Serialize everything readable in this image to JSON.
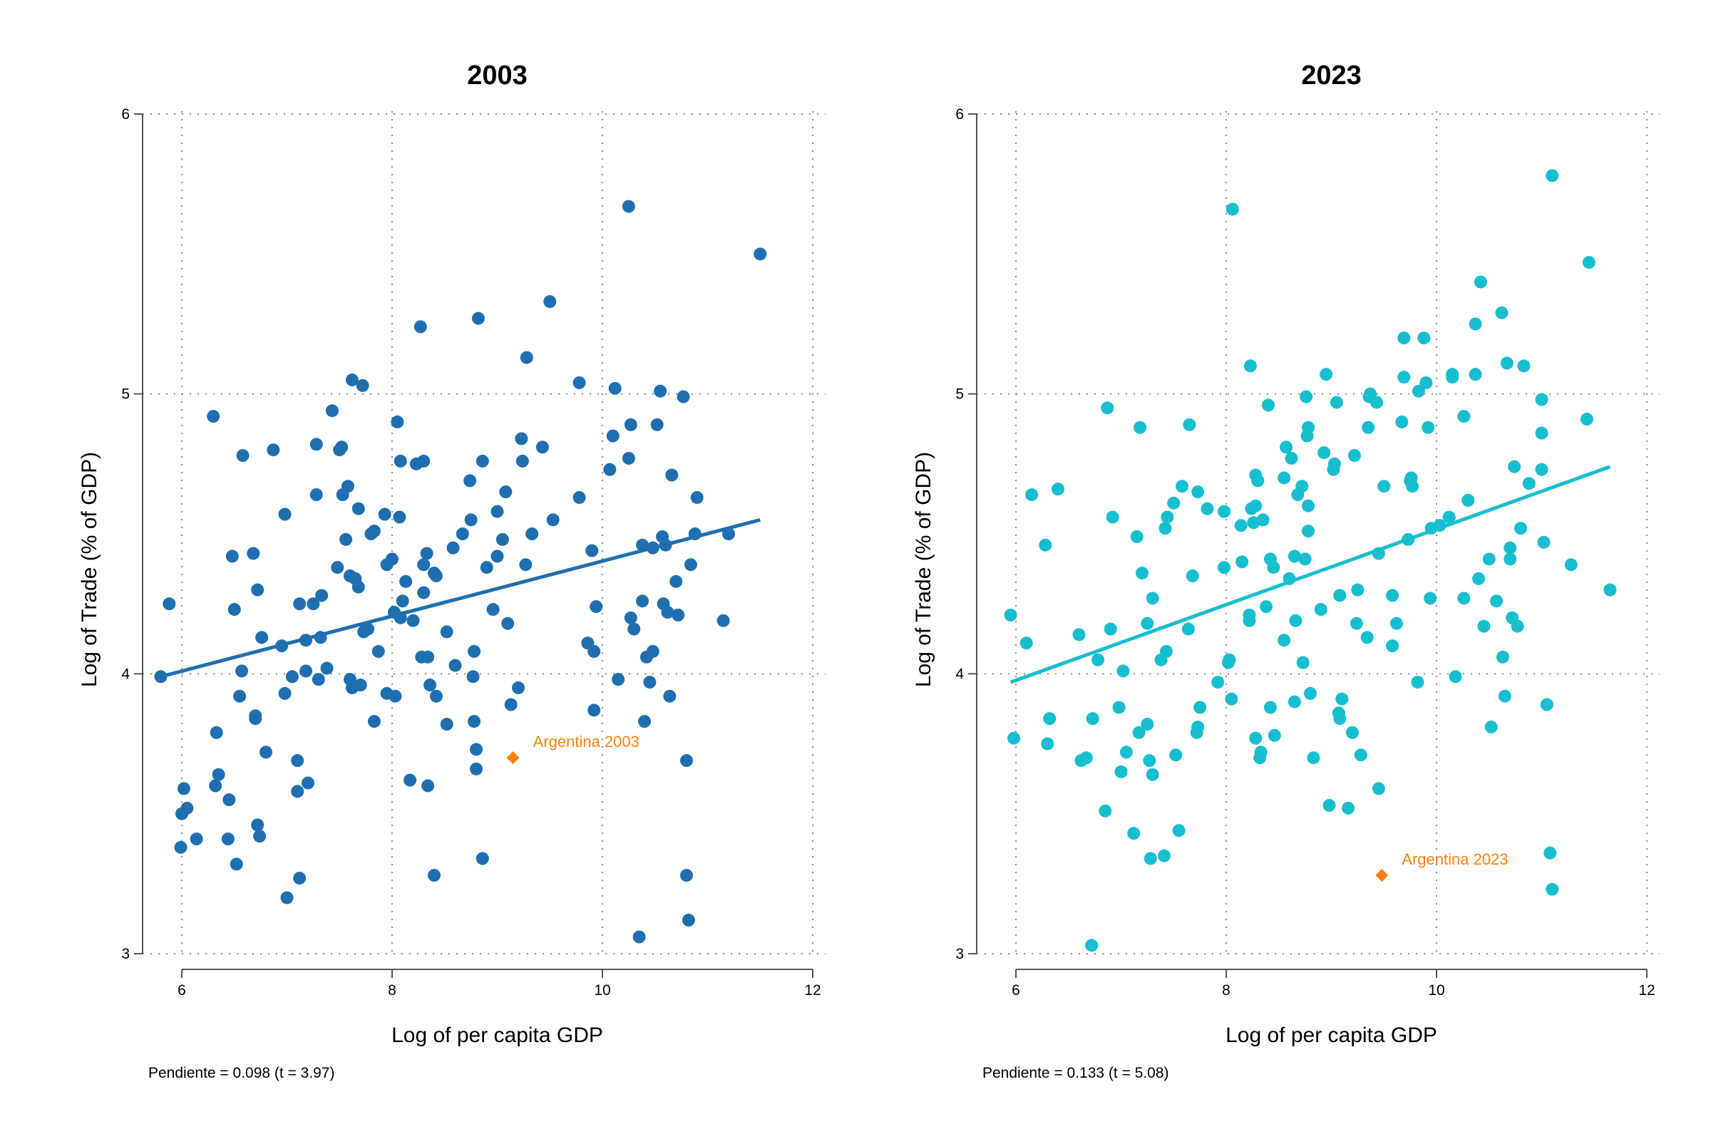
{
  "chart_data": [
    {
      "type": "scatter",
      "title": "2003",
      "xlabel": "Log of per capita GDP",
      "ylabel": "Log of Trade (% of GDP)",
      "xlim": [
        5.7,
        12.2
      ],
      "ylim": [
        2.92,
        6.05
      ],
      "xticks": [
        6,
        8,
        10,
        12
      ],
      "yticks": [
        3,
        4,
        5,
        6
      ],
      "grid": "dotted",
      "color": "#1f6fb0",
      "fit_line": {
        "x0": 5.8,
        "y0": 3.99,
        "x1": 11.5,
        "y1": 4.55
      },
      "highlight": {
        "x": 9.15,
        "y": 3.7,
        "label": "Argentina 2003",
        "color": "#ff7f0e"
      },
      "note": "Pendiente = 0.098   (t =  3.97)",
      "points": [
        [
          5.8,
          3.99
        ],
        [
          5.88,
          4.25
        ],
        [
          6.0,
          3.5
        ],
        [
          6.02,
          3.59
        ],
        [
          6.05,
          3.52
        ],
        [
          5.99,
          3.38
        ],
        [
          6.14,
          3.41
        ],
        [
          6.3,
          4.92
        ],
        [
          6.33,
          3.79
        ],
        [
          6.35,
          3.64
        ],
        [
          6.32,
          3.6
        ],
        [
          6.44,
          3.41
        ],
        [
          6.45,
          3.55
        ],
        [
          6.48,
          4.42
        ],
        [
          6.5,
          4.23
        ],
        [
          6.52,
          3.32
        ],
        [
          6.55,
          3.92
        ],
        [
          6.58,
          4.78
        ],
        [
          6.57,
          4.01
        ],
        [
          6.68,
          4.43
        ],
        [
          6.7,
          3.84
        ],
        [
          6.7,
          3.85
        ],
        [
          6.72,
          4.3
        ],
        [
          6.72,
          3.46
        ],
        [
          6.74,
          3.42
        ],
        [
          6.76,
          4.13
        ],
        [
          6.8,
          3.72
        ],
        [
          6.87,
          4.8
        ],
        [
          6.95,
          4.1
        ],
        [
          6.98,
          3.93
        ],
        [
          6.98,
          4.57
        ],
        [
          7.0,
          3.2
        ],
        [
          7.05,
          3.99
        ],
        [
          7.1,
          3.69
        ],
        [
          7.1,
          3.58
        ],
        [
          7.12,
          4.25
        ],
        [
          7.12,
          3.27
        ],
        [
          7.18,
          4.01
        ],
        [
          7.18,
          4.12
        ],
        [
          7.2,
          3.61
        ],
        [
          7.25,
          4.25
        ],
        [
          7.28,
          4.82
        ],
        [
          7.28,
          4.64
        ],
        [
          7.3,
          3.98
        ],
        [
          7.32,
          4.13
        ],
        [
          7.33,
          4.28
        ],
        [
          7.38,
          4.02
        ],
        [
          7.43,
          4.94
        ],
        [
          7.48,
          4.38
        ],
        [
          7.5,
          4.8
        ],
        [
          7.52,
          4.81
        ],
        [
          7.53,
          4.64
        ],
        [
          7.56,
          4.48
        ],
        [
          7.58,
          4.67
        ],
        [
          7.6,
          4.35
        ],
        [
          7.6,
          3.98
        ],
        [
          7.62,
          5.05
        ],
        [
          7.62,
          3.95
        ],
        [
          7.65,
          4.34
        ],
        [
          7.68,
          4.31
        ],
        [
          7.68,
          4.59
        ],
        [
          7.7,
          3.96
        ],
        [
          7.72,
          5.03
        ],
        [
          7.73,
          4.15
        ],
        [
          7.77,
          4.16
        ],
        [
          7.8,
          4.5
        ],
        [
          7.83,
          4.51
        ],
        [
          7.83,
          3.83
        ],
        [
          7.87,
          4.08
        ],
        [
          7.93,
          4.57
        ],
        [
          7.95,
          3.93
        ],
        [
          7.95,
          4.39
        ],
        [
          8.0,
          4.41
        ],
        [
          8.02,
          4.22
        ],
        [
          8.03,
          3.92
        ],
        [
          8.05,
          4.9
        ],
        [
          8.07,
          4.56
        ],
        [
          8.08,
          4.76
        ],
        [
          8.08,
          4.2
        ],
        [
          8.1,
          4.26
        ],
        [
          8.13,
          4.33
        ],
        [
          8.17,
          3.62
        ],
        [
          8.2,
          4.19
        ],
        [
          8.23,
          4.75
        ],
        [
          8.27,
          5.24
        ],
        [
          8.28,
          4.06
        ],
        [
          8.3,
          4.76
        ],
        [
          8.3,
          4.39
        ],
        [
          8.3,
          4.29
        ],
        [
          8.33,
          4.43
        ],
        [
          8.34,
          3.6
        ],
        [
          8.34,
          4.06
        ],
        [
          8.36,
          3.96
        ],
        [
          8.4,
          4.36
        ],
        [
          8.4,
          3.28
        ],
        [
          8.42,
          4.35
        ],
        [
          8.42,
          3.92
        ],
        [
          8.52,
          3.82
        ],
        [
          8.52,
          4.15
        ],
        [
          8.58,
          4.45
        ],
        [
          8.6,
          4.03
        ],
        [
          8.67,
          4.5
        ],
        [
          8.74,
          4.69
        ],
        [
          8.75,
          4.55
        ],
        [
          8.77,
          3.99
        ],
        [
          8.78,
          4.08
        ],
        [
          8.78,
          3.83
        ],
        [
          8.8,
          3.73
        ],
        [
          8.8,
          3.66
        ],
        [
          8.82,
          5.27
        ],
        [
          8.86,
          4.76
        ],
        [
          8.86,
          3.34
        ],
        [
          8.9,
          4.38
        ],
        [
          8.96,
          4.23
        ],
        [
          9.0,
          4.58
        ],
        [
          9.0,
          4.42
        ],
        [
          9.05,
          4.48
        ],
        [
          9.08,
          4.65
        ],
        [
          9.1,
          4.18
        ],
        [
          9.13,
          3.89
        ],
        [
          9.2,
          3.95
        ],
        [
          9.23,
          4.84
        ],
        [
          9.24,
          4.76
        ],
        [
          9.27,
          4.39
        ],
        [
          9.28,
          5.13
        ],
        [
          9.33,
          4.5
        ],
        [
          9.43,
          4.81
        ],
        [
          9.5,
          5.33
        ],
        [
          9.53,
          4.55
        ],
        [
          9.78,
          5.04
        ],
        [
          9.78,
          4.63
        ],
        [
          9.86,
          4.11
        ],
        [
          9.9,
          4.44
        ],
        [
          9.92,
          4.08
        ],
        [
          9.94,
          4.24
        ],
        [
          9.92,
          3.87
        ],
        [
          10.07,
          4.73
        ],
        [
          10.1,
          4.85
        ],
        [
          10.12,
          5.02
        ],
        [
          10.15,
          3.98
        ],
        [
          10.25,
          5.67
        ],
        [
          10.27,
          4.2
        ],
        [
          10.27,
          4.89
        ],
        [
          10.25,
          4.77
        ],
        [
          10.3,
          4.16
        ],
        [
          10.35,
          3.06
        ],
        [
          10.38,
          4.46
        ],
        [
          10.38,
          4.26
        ],
        [
          10.4,
          3.83
        ],
        [
          10.42,
          4.06
        ],
        [
          10.45,
          3.97
        ],
        [
          10.48,
          4.08
        ],
        [
          10.48,
          4.45
        ],
        [
          10.52,
          4.89
        ],
        [
          10.55,
          5.01
        ],
        [
          10.57,
          4.49
        ],
        [
          10.58,
          4.25
        ],
        [
          10.6,
          4.46
        ],
        [
          10.62,
          4.22
        ],
        [
          10.64,
          3.92
        ],
        [
          10.66,
          4.71
        ],
        [
          10.7,
          4.33
        ],
        [
          10.72,
          4.21
        ],
        [
          10.77,
          4.99
        ],
        [
          10.8,
          3.69
        ],
        [
          10.8,
          3.28
        ],
        [
          10.82,
          3.12
        ],
        [
          10.84,
          4.39
        ],
        [
          10.88,
          4.5
        ],
        [
          10.9,
          4.63
        ],
        [
          11.15,
          4.19
        ],
        [
          11.2,
          4.5
        ],
        [
          11.5,
          5.5
        ]
      ]
    },
    {
      "type": "scatter",
      "title": "2023",
      "xlabel": "Log of per capita GDP",
      "ylabel": "Log of Trade (% of GDP)",
      "xlim": [
        5.7,
        12.2
      ],
      "ylim": [
        2.92,
        6.05
      ],
      "xticks": [
        6,
        8,
        10,
        12
      ],
      "yticks": [
        3,
        4,
        5,
        6
      ],
      "grid": "dotted",
      "color": "#17becf",
      "fit_line": {
        "x0": 5.95,
        "y0": 3.97,
        "x1": 11.65,
        "y1": 4.74
      },
      "highlight": {
        "x": 9.48,
        "y": 3.28,
        "label": "Argentina 2023",
        "color": "#ff7f0e"
      },
      "note": "Pendiente = 0.133   (t =  5.08)",
      "points": [
        [
          5.95,
          4.21
        ],
        [
          5.98,
          3.77
        ],
        [
          6.1,
          4.11
        ],
        [
          6.15,
          4.64
        ],
        [
          6.28,
          4.46
        ],
        [
          6.3,
          3.75
        ],
        [
          6.32,
          3.84
        ],
        [
          6.4,
          4.66
        ],
        [
          6.6,
          4.14
        ],
        [
          6.62,
          3.69
        ],
        [
          6.67,
          3.7
        ],
        [
          6.72,
          3.03
        ],
        [
          6.73,
          3.84
        ],
        [
          6.78,
          4.05
        ],
        [
          6.85,
          3.51
        ],
        [
          6.87,
          4.95
        ],
        [
          6.9,
          4.16
        ],
        [
          6.92,
          4.56
        ],
        [
          6.98,
          3.88
        ],
        [
          7.0,
          3.65
        ],
        [
          7.02,
          4.01
        ],
        [
          7.05,
          3.72
        ],
        [
          7.12,
          3.43
        ],
        [
          7.15,
          4.49
        ],
        [
          7.17,
          3.79
        ],
        [
          7.18,
          4.88
        ],
        [
          7.2,
          4.36
        ],
        [
          7.25,
          3.82
        ],
        [
          7.25,
          4.18
        ],
        [
          7.27,
          3.69
        ],
        [
          7.28,
          3.34
        ],
        [
          7.3,
          3.64
        ],
        [
          7.3,
          4.27
        ],
        [
          7.38,
          4.05
        ],
        [
          7.41,
          3.35
        ],
        [
          7.42,
          4.52
        ],
        [
          7.43,
          4.08
        ],
        [
          7.44,
          4.56
        ],
        [
          7.5,
          4.61
        ],
        [
          7.52,
          3.71
        ],
        [
          7.55,
          3.44
        ],
        [
          7.58,
          4.67
        ],
        [
          7.64,
          4.16
        ],
        [
          7.65,
          4.89
        ],
        [
          7.68,
          4.35
        ],
        [
          7.72,
          3.79
        ],
        [
          7.73,
          3.81
        ],
        [
          7.75,
          3.88
        ],
        [
          7.73,
          4.65
        ],
        [
          7.82,
          4.59
        ],
        [
          7.92,
          3.97
        ],
        [
          7.98,
          4.58
        ],
        [
          7.98,
          4.38
        ],
        [
          8.02,
          4.04
        ],
        [
          8.03,
          4.05
        ],
        [
          8.05,
          3.91
        ],
        [
          8.06,
          5.66
        ],
        [
          8.14,
          4.53
        ],
        [
          8.15,
          4.4
        ],
        [
          8.22,
          4.19
        ],
        [
          8.22,
          4.21
        ],
        [
          8.23,
          5.1
        ],
        [
          8.24,
          4.59
        ],
        [
          8.26,
          4.54
        ],
        [
          8.28,
          4.6
        ],
        [
          8.28,
          4.71
        ],
        [
          8.3,
          4.69
        ],
        [
          8.28,
          3.77
        ],
        [
          8.32,
          3.7
        ],
        [
          8.35,
          4.55
        ],
        [
          8.33,
          3.72
        ],
        [
          8.38,
          4.24
        ],
        [
          8.4,
          4.96
        ],
        [
          8.42,
          3.88
        ],
        [
          8.42,
          4.41
        ],
        [
          8.45,
          4.38
        ],
        [
          8.46,
          3.78
        ],
        [
          8.55,
          4.12
        ],
        [
          8.55,
          4.7
        ],
        [
          8.57,
          4.81
        ],
        [
          8.6,
          4.34
        ],
        [
          8.62,
          4.77
        ],
        [
          8.65,
          3.9
        ],
        [
          8.65,
          4.42
        ],
        [
          8.66,
          4.19
        ],
        [
          8.68,
          4.64
        ],
        [
          8.72,
          4.67
        ],
        [
          8.73,
          4.04
        ],
        [
          8.75,
          4.41
        ],
        [
          8.76,
          4.99
        ],
        [
          8.77,
          4.85
        ],
        [
          8.78,
          4.88
        ],
        [
          8.78,
          4.6
        ],
        [
          8.78,
          4.51
        ],
        [
          8.8,
          3.93
        ],
        [
          8.83,
          3.7
        ],
        [
          8.9,
          4.23
        ],
        [
          8.93,
          4.79
        ],
        [
          8.95,
          5.07
        ],
        [
          8.98,
          3.53
        ],
        [
          9.02,
          4.73
        ],
        [
          9.03,
          4.75
        ],
        [
          9.05,
          4.97
        ],
        [
          9.07,
          3.86
        ],
        [
          9.08,
          3.84
        ],
        [
          9.08,
          4.28
        ],
        [
          9.1,
          3.91
        ],
        [
          9.16,
          3.52
        ],
        [
          9.2,
          3.79
        ],
        [
          9.22,
          4.78
        ],
        [
          9.24,
          4.18
        ],
        [
          9.25,
          4.3
        ],
        [
          9.28,
          3.71
        ],
        [
          9.34,
          4.13
        ],
        [
          9.35,
          4.88
        ],
        [
          9.37,
          5.0
        ],
        [
          9.36,
          4.99
        ],
        [
          9.43,
          4.97
        ],
        [
          9.45,
          4.43
        ],
        [
          9.45,
          3.59
        ],
        [
          9.5,
          4.67
        ],
        [
          9.58,
          4.1
        ],
        [
          9.58,
          4.28
        ],
        [
          9.62,
          4.18
        ],
        [
          9.67,
          4.9
        ],
        [
          9.69,
          5.06
        ],
        [
          9.69,
          5.2
        ],
        [
          9.73,
          4.48
        ],
        [
          9.75,
          4.69
        ],
        [
          9.77,
          4.67
        ],
        [
          9.76,
          4.7
        ],
        [
          9.82,
          3.97
        ],
        [
          9.83,
          5.01
        ],
        [
          9.88,
          5.2
        ],
        [
          9.9,
          5.04
        ],
        [
          9.92,
          4.88
        ],
        [
          9.94,
          4.27
        ],
        [
          9.95,
          4.52
        ],
        [
          10.03,
          4.53
        ],
        [
          10.12,
          4.56
        ],
        [
          10.15,
          5.06
        ],
        [
          10.15,
          5.07
        ],
        [
          10.18,
          3.99
        ],
        [
          10.26,
          4.92
        ],
        [
          10.26,
          4.27
        ],
        [
          10.3,
          4.62
        ],
        [
          10.37,
          5.07
        ],
        [
          10.37,
          5.25
        ],
        [
          10.4,
          4.34
        ],
        [
          10.42,
          5.4
        ],
        [
          10.45,
          4.17
        ],
        [
          10.5,
          4.41
        ],
        [
          10.52,
          3.81
        ],
        [
          10.57,
          4.26
        ],
        [
          10.62,
          5.29
        ],
        [
          10.63,
          4.06
        ],
        [
          10.65,
          3.92
        ],
        [
          10.67,
          5.11
        ],
        [
          10.7,
          4.41
        ],
        [
          10.7,
          4.45
        ],
        [
          10.72,
          4.2
        ],
        [
          10.74,
          4.74
        ],
        [
          10.77,
          4.17
        ],
        [
          10.8,
          4.52
        ],
        [
          10.83,
          5.1
        ],
        [
          10.88,
          4.68
        ],
        [
          11.0,
          4.98
        ],
        [
          11.0,
          4.86
        ],
        [
          11.0,
          4.73
        ],
        [
          11.02,
          4.47
        ],
        [
          11.05,
          3.89
        ],
        [
          11.08,
          3.36
        ],
        [
          11.1,
          3.23
        ],
        [
          11.1,
          5.78
        ],
        [
          11.28,
          4.39
        ],
        [
          11.43,
          4.91
        ],
        [
          11.45,
          5.47
        ],
        [
          11.65,
          4.3
        ]
      ]
    }
  ]
}
